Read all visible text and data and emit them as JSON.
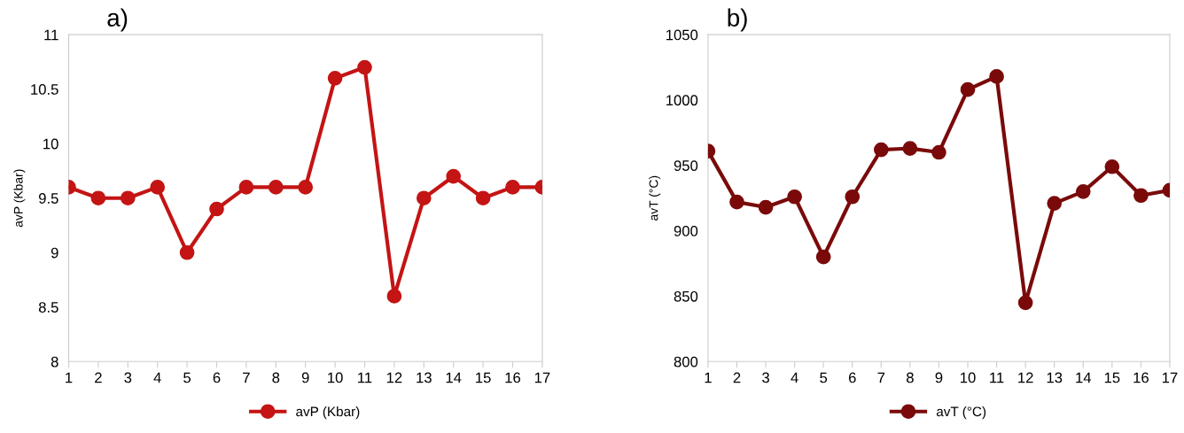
{
  "chart_data": [
    {
      "type": "line",
      "title": "a)",
      "ylabel": "avP (Kbar)",
      "categories": [
        "1",
        "2",
        "3",
        "4",
        "5",
        "6",
        "7",
        "8",
        "9",
        "10",
        "11",
        "12",
        "13",
        "14",
        "15",
        "16",
        "17"
      ],
      "series": [
        {
          "name": "avP (Kbar)",
          "color": "#c41414",
          "values": [
            9.6,
            9.5,
            9.5,
            9.6,
            9.0,
            9.4,
            9.6,
            9.6,
            9.6,
            10.6,
            10.7,
            8.6,
            9.5,
            9.7,
            9.5,
            9.6,
            9.6
          ]
        }
      ],
      "ylim": [
        8,
        11
      ],
      "yticks": [
        8,
        {
          "value": 8.5,
          "label": "8.5"
        },
        9,
        {
          "value": 9.5,
          "label": "9.5"
        },
        10,
        {
          "value": 10.5,
          "label": "10.5"
        },
        11
      ],
      "grid": false,
      "legend": "bottom",
      "marker": "circle",
      "line_style": "solid"
    },
    {
      "type": "line",
      "title": "b)",
      "ylabel": "avT (°C)",
      "categories": [
        "1",
        "2",
        "3",
        "4",
        "5",
        "6",
        "7",
        "8",
        "9",
        "10",
        "11",
        "12",
        "13",
        "14",
        "15",
        "16",
        "17"
      ],
      "series": [
        {
          "name": "avT (°C)",
          "color": "#7a0a0a",
          "values": [
            961,
            922,
            918,
            926,
            880,
            926,
            962,
            963,
            960,
            1008,
            1018,
            845,
            921,
            930,
            949,
            927,
            931
          ]
        }
      ],
      "ylim": [
        800,
        1050
      ],
      "yticks": [
        800,
        850,
        900,
        950,
        1000,
        1050
      ],
      "grid": false,
      "legend": "bottom",
      "marker": "circle",
      "line_style": "solid"
    }
  ]
}
